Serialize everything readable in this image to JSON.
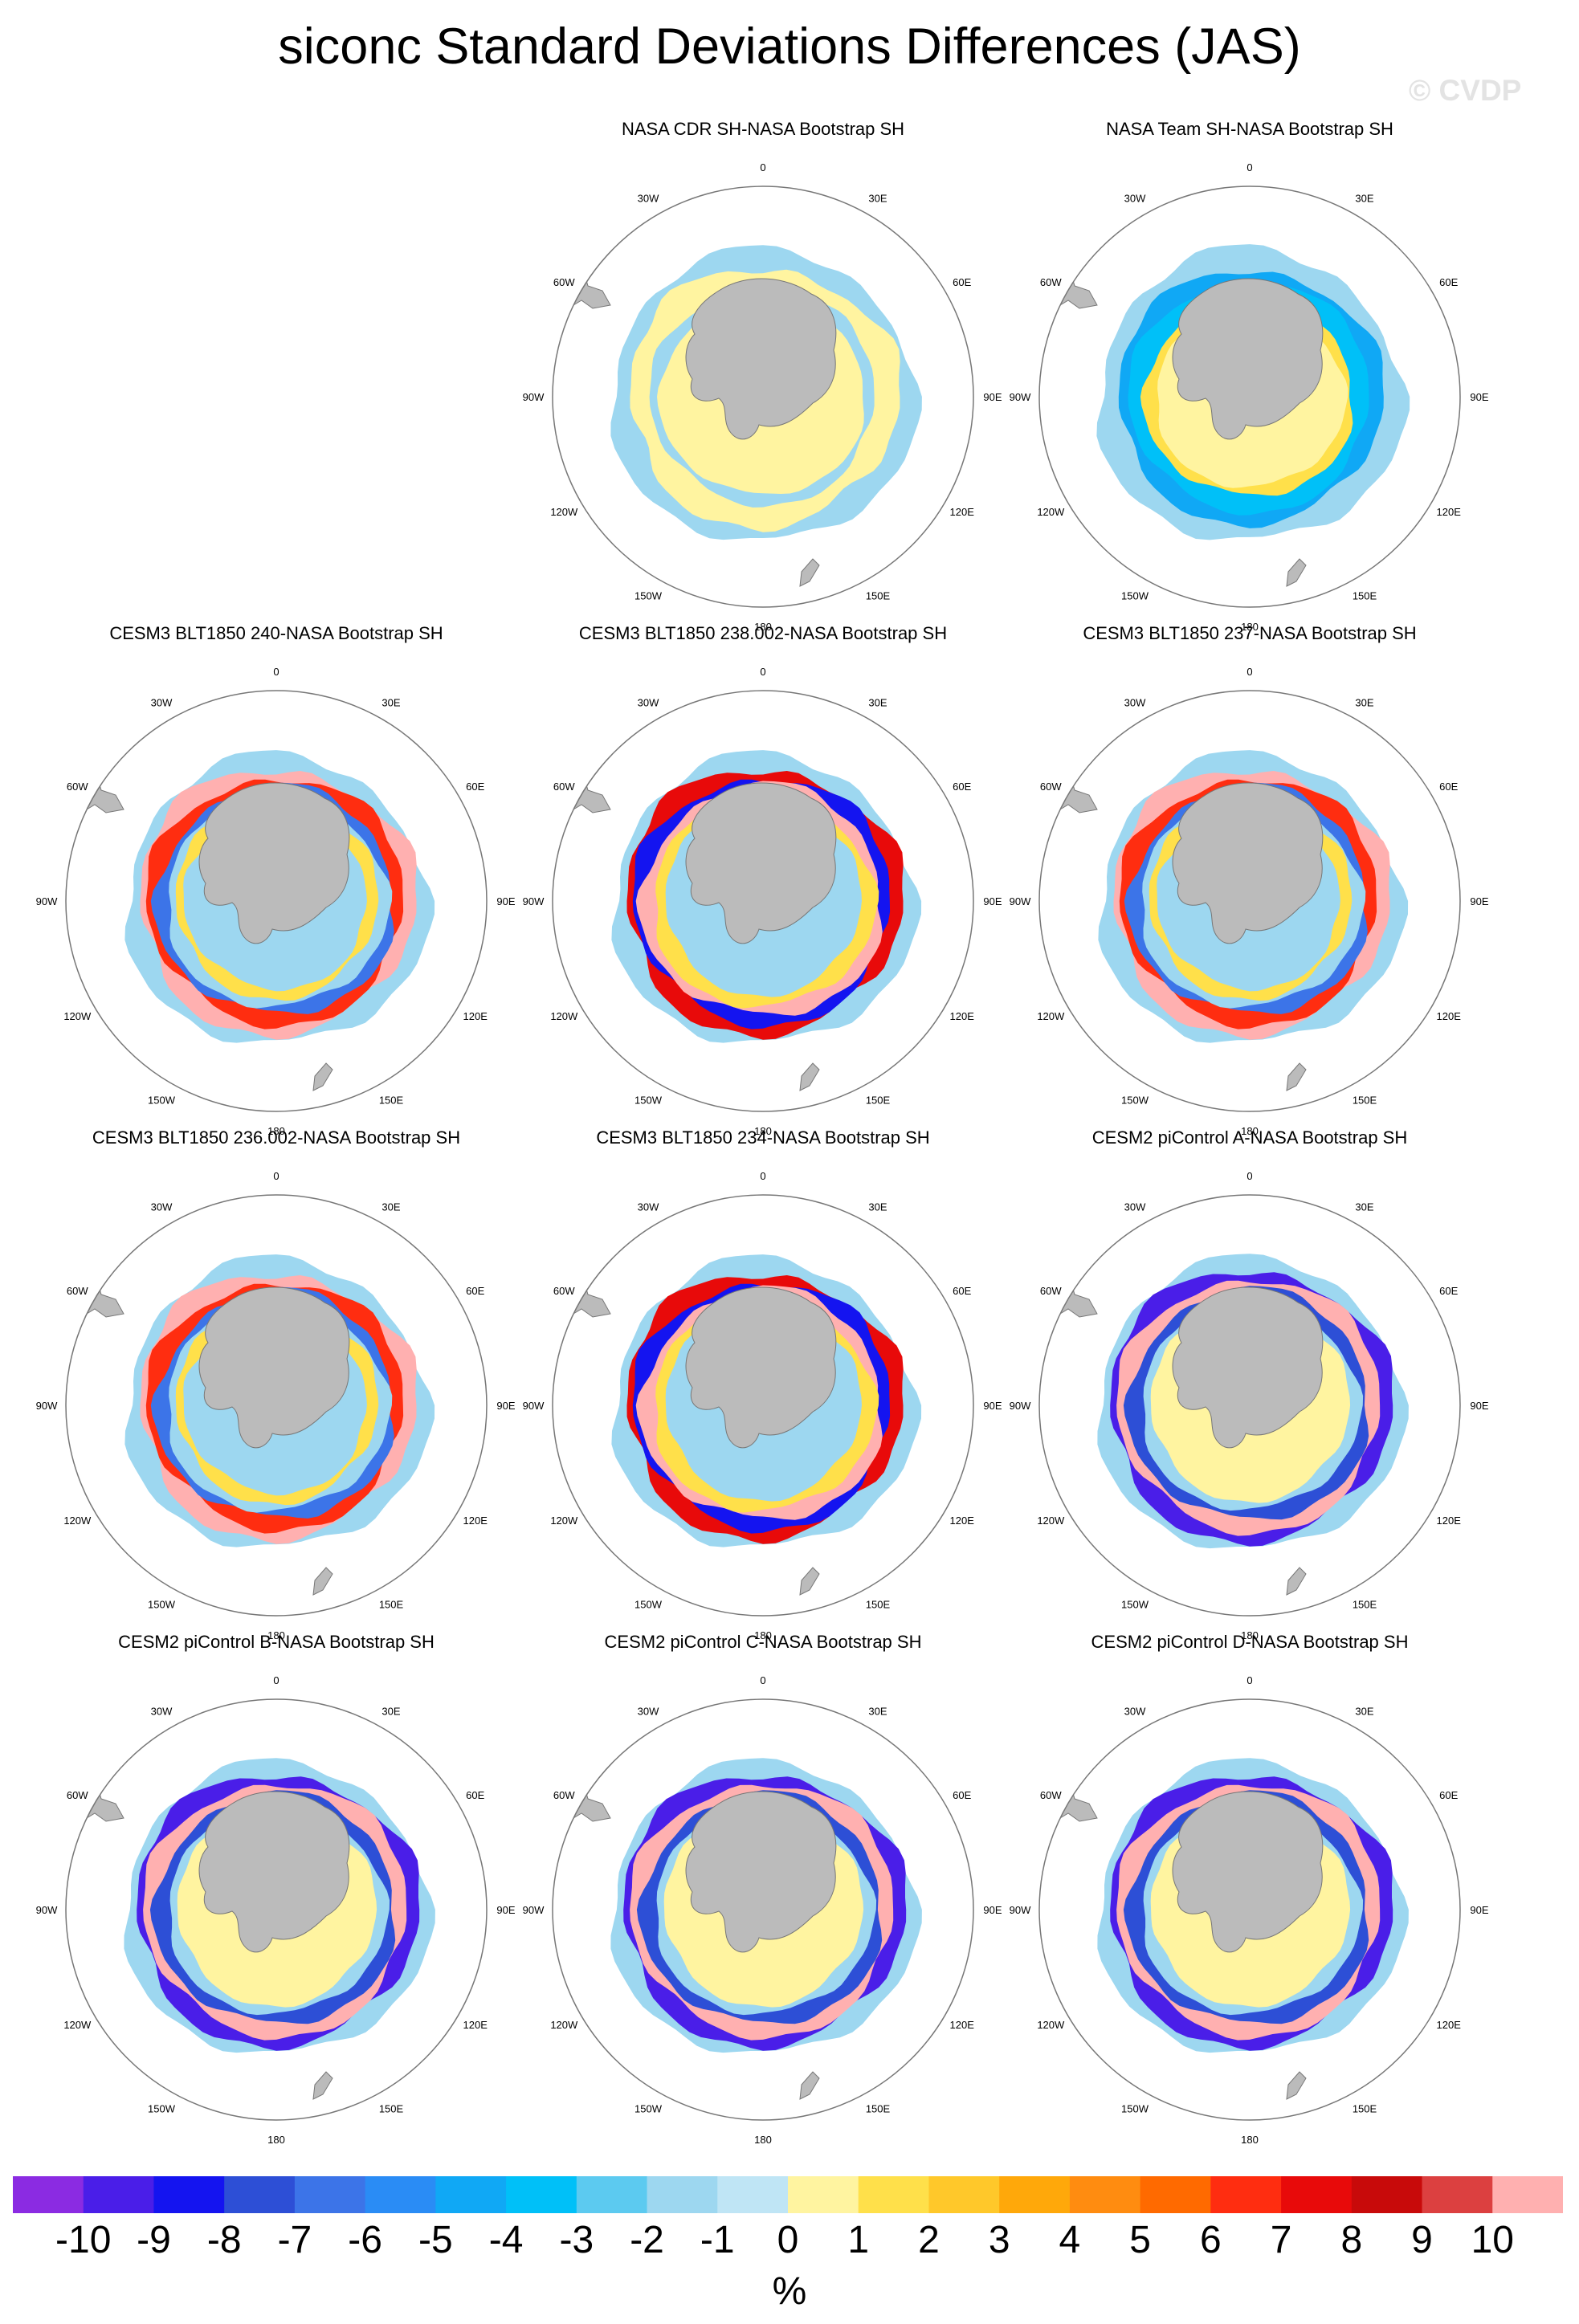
{
  "title": "siconc Standard Deviations Differences (JAS)",
  "watermark": "© CVDP",
  "units": "%",
  "map": {
    "projection": "south-polar-stereographic",
    "lon_labels": [
      "0",
      "30E",
      "60E",
      "90E",
      "120E",
      "150E",
      "180",
      "150W",
      "120W",
      "90W",
      "60W",
      "30W"
    ]
  },
  "colorbar": {
    "labels": [
      "-10",
      "-9",
      "-8",
      "-7",
      "-6",
      "-5",
      "-4",
      "-3",
      "-2",
      "-1",
      "0",
      "1",
      "2",
      "3",
      "4",
      "5",
      "6",
      "7",
      "8",
      "9",
      "10"
    ],
    "colors": [
      "#8b2be2",
      "#4a1ee8",
      "#1414f0",
      "#2d4fd6",
      "#3c74e8",
      "#2a8cf5",
      "#10a8f5",
      "#00c0f8",
      "#5ccaf0",
      "#9dd7f0",
      "#bfe5f5",
      "#fff4a0",
      "#ffe04a",
      "#ffc82a",
      "#ffa80a",
      "#ff8c10",
      "#ff6a00",
      "#ff2d10",
      "#e80a0a",
      "#c80a0a",
      "#dc4040",
      "#ffb0b0"
    ]
  },
  "panels": [
    {
      "title": "",
      "pattern": "empty"
    },
    {
      "title": "NASA CDR SH-NASA Bootstrap SH",
      "pattern": "cdr"
    },
    {
      "title": "NASA Team SH-NASA Bootstrap SH",
      "pattern": "team"
    },
    {
      "title": "CESM3 BLT1850 240-NASA Bootstrap SH",
      "pattern": "cesm3"
    },
    {
      "title": "CESM3 BLT1850 238.002-NASA Bootstrap SH",
      "pattern": "cesm3b"
    },
    {
      "title": "CESM3 BLT1850 237-NASA Bootstrap SH",
      "pattern": "cesm3"
    },
    {
      "title": "CESM3 BLT1850 236.002-NASA Bootstrap SH",
      "pattern": "cesm3"
    },
    {
      "title": "CESM3 BLT1850 234-NASA Bootstrap SH",
      "pattern": "cesm3b"
    },
    {
      "title": "CESM2 piControl A-NASA Bootstrap SH",
      "pattern": "cesm2"
    },
    {
      "title": "CESM2 piControl B-NASA Bootstrap SH",
      "pattern": "cesm2"
    },
    {
      "title": "CESM2 piControl C-NASA Bootstrap SH",
      "pattern": "cesm2"
    },
    {
      "title": "CESM2 piControl D-NASA Bootstrap SH",
      "pattern": "cesm2"
    }
  ]
}
